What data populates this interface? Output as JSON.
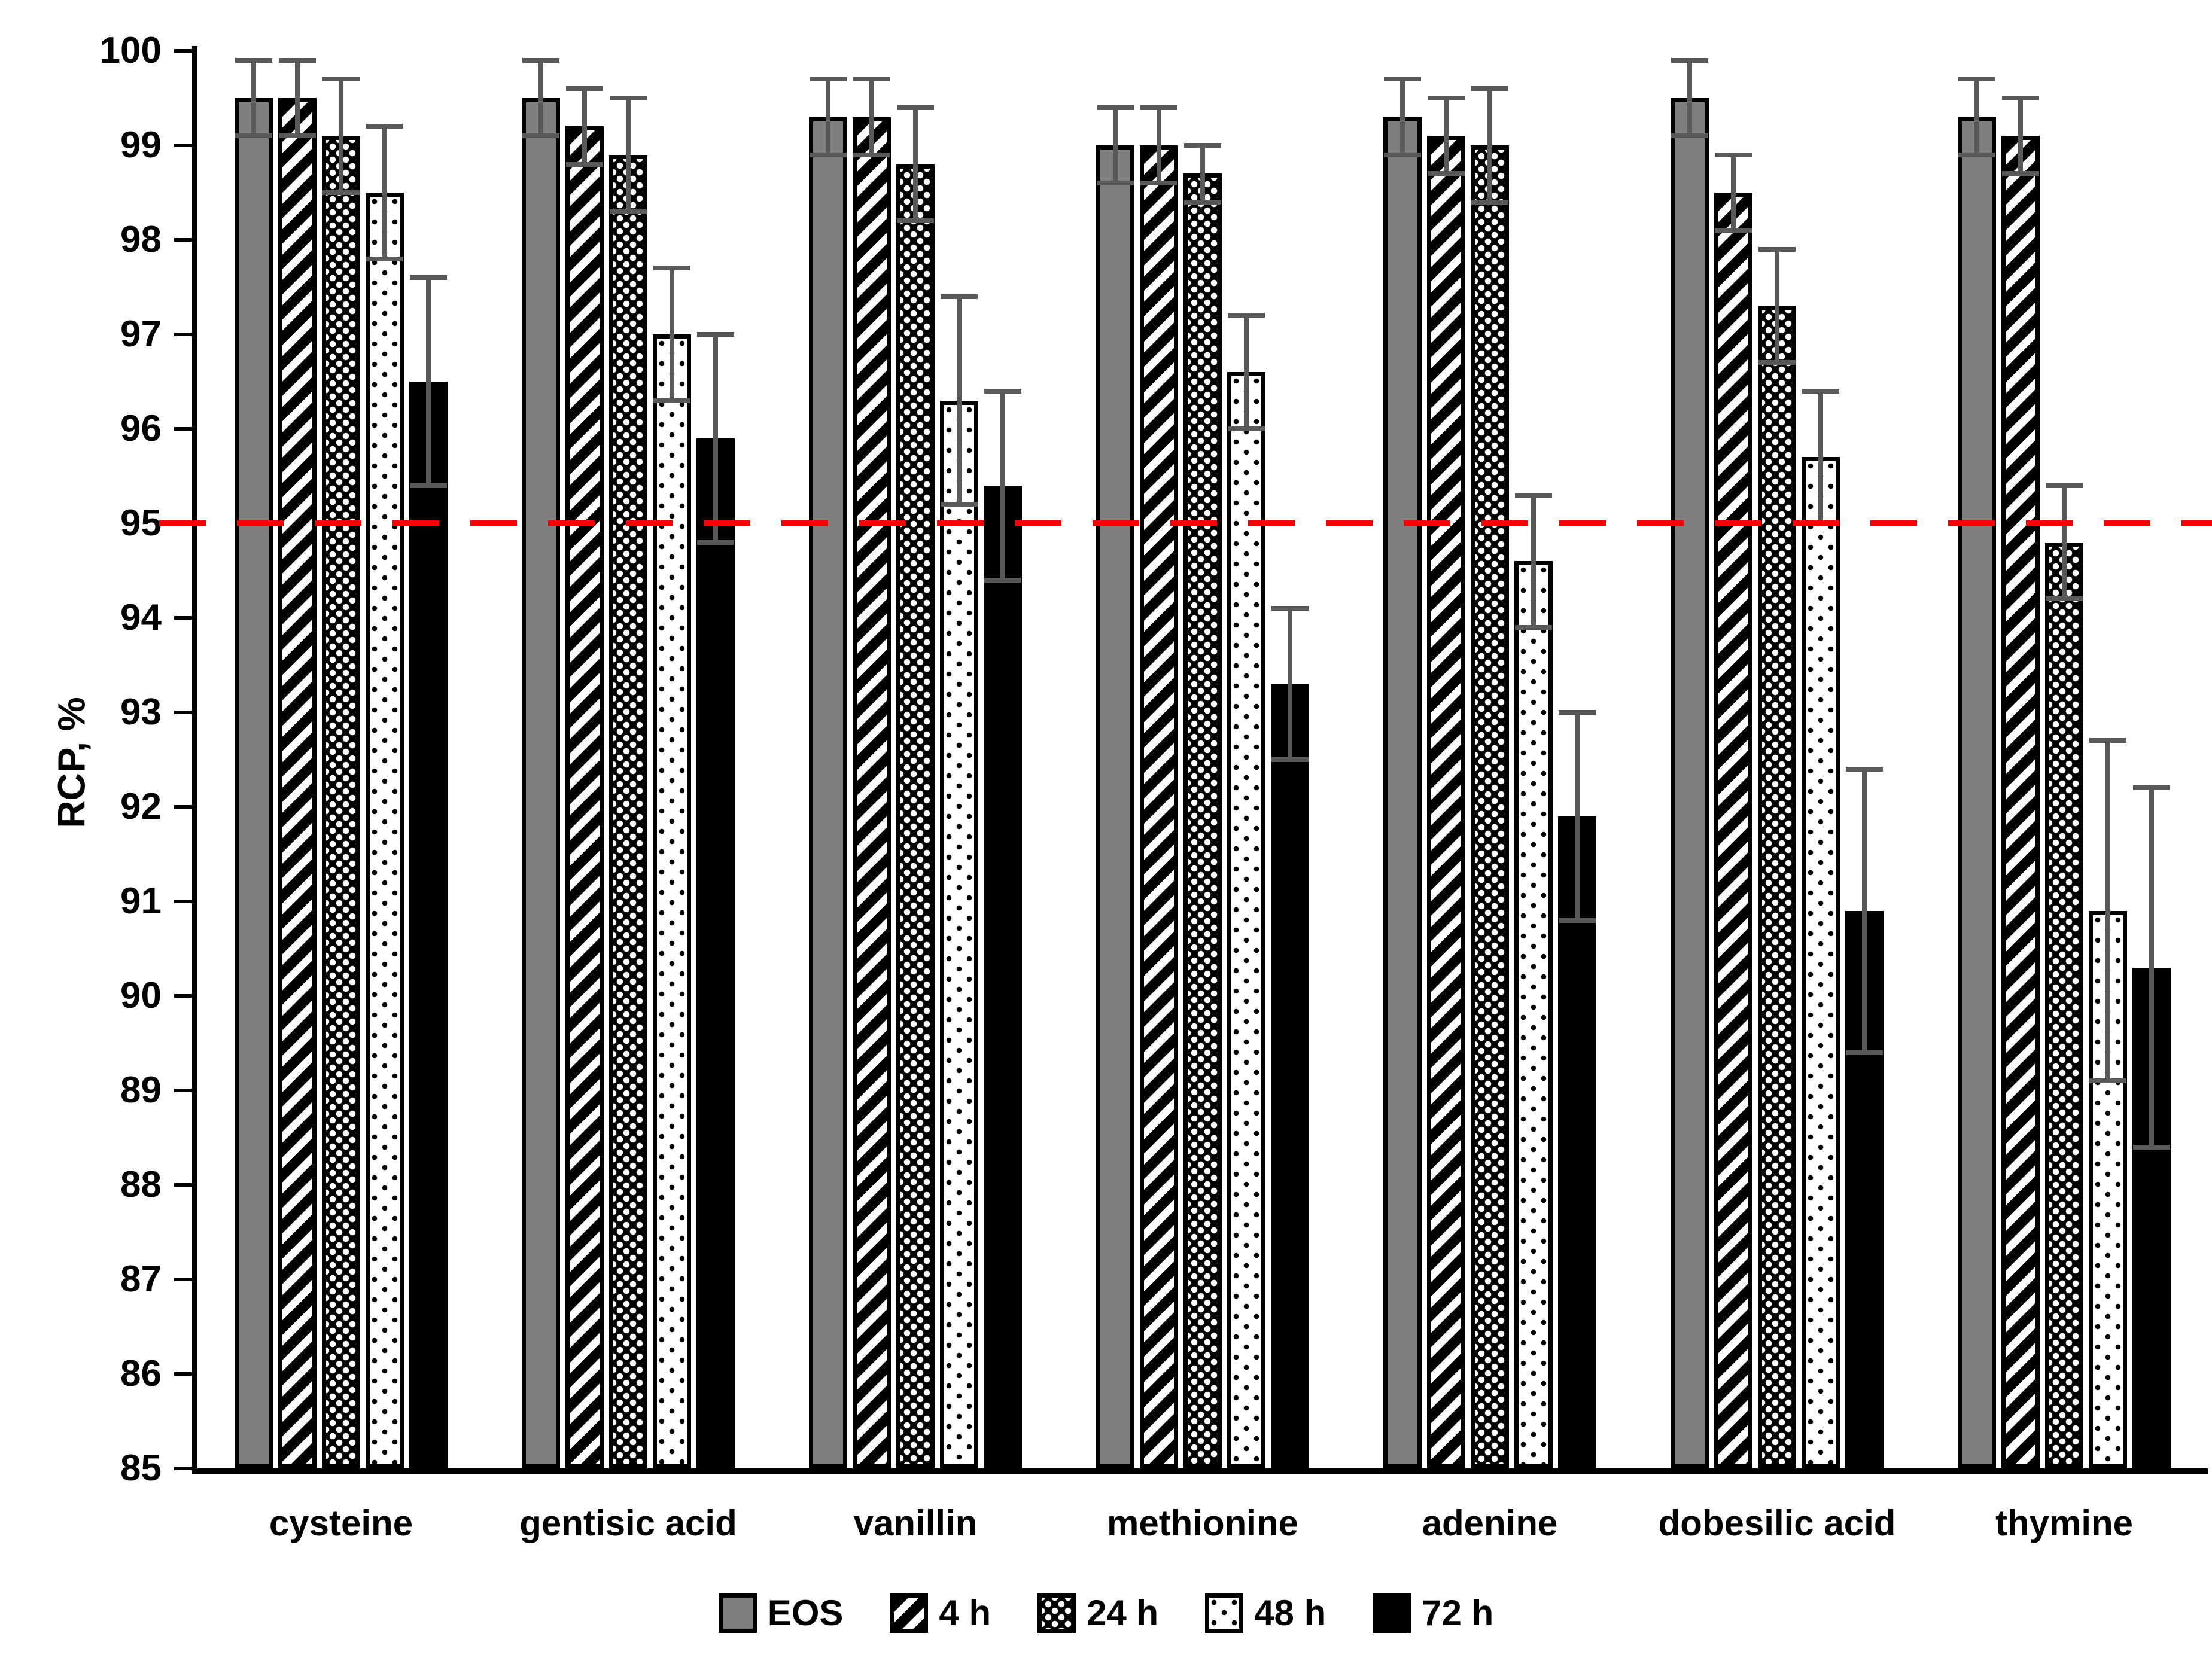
{
  "chart_data": {
    "type": "bar",
    "title": "",
    "xlabel": "",
    "ylabel": "RCP, %",
    "ylim": [
      85,
      100
    ],
    "yticks": [
      100,
      99,
      98,
      97,
      96,
      95,
      94,
      93,
      92,
      91,
      90,
      89,
      88,
      87,
      86,
      85
    ],
    "grid": false,
    "legend_position": "bottom-center",
    "reference_line": {
      "value": 95,
      "style": "dashed",
      "color": "#FF0000"
    },
    "categories": [
      "cysteine",
      "gentisic acid",
      "vanillin",
      "methionine",
      "adenine",
      "dobesilic acid",
      "thymine"
    ],
    "series": [
      {
        "name": "EOS",
        "pattern": "solid-gray",
        "values": [
          99.5,
          99.5,
          99.3,
          99.0,
          99.3,
          99.5,
          99.3
        ],
        "errors": [
          0.4,
          0.4,
          0.4,
          0.4,
          0.4,
          0.4,
          0.4
        ]
      },
      {
        "name": "4 h",
        "pattern": "diagonal-hatch",
        "values": [
          99.5,
          99.2,
          99.3,
          99.0,
          99.1,
          98.5,
          99.1
        ],
        "errors": [
          0.4,
          0.4,
          0.4,
          0.4,
          0.4,
          0.4,
          0.4
        ]
      },
      {
        "name": "24 h",
        "pattern": "dense-white-dots-on-black",
        "values": [
          99.1,
          98.9,
          98.8,
          98.7,
          99.0,
          97.3,
          94.8
        ],
        "errors": [
          0.6,
          0.6,
          0.6,
          0.3,
          0.6,
          0.6,
          0.6
        ]
      },
      {
        "name": "48 h",
        "pattern": "sparse-black-dots-on-white",
        "values": [
          98.5,
          97.0,
          96.3,
          96.6,
          94.6,
          95.7,
          90.9
        ],
        "errors": [
          0.7,
          0.7,
          1.1,
          0.6,
          0.7,
          0.7,
          1.8
        ]
      },
      {
        "name": "72 h",
        "pattern": "solid-black",
        "values": [
          96.5,
          95.9,
          95.4,
          93.3,
          91.9,
          90.9,
          90.3
        ],
        "errors": [
          1.1,
          1.1,
          1.0,
          0.8,
          1.1,
          1.5,
          1.9
        ]
      }
    ],
    "colors": {
      "eos_fill": "#7f7f7f",
      "bar_outline": "#000000",
      "error_bar": "#595959",
      "reference": "#FF0000",
      "background": "#ffffff"
    }
  }
}
